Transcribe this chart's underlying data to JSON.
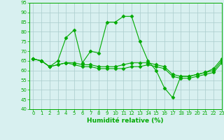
{
  "x": [
    0,
    1,
    2,
    3,
    4,
    5,
    6,
    7,
    8,
    9,
    10,
    11,
    12,
    13,
    14,
    15,
    16,
    17,
    18,
    19,
    20,
    21,
    22,
    23
  ],
  "line1": [
    66,
    65,
    62,
    65,
    77,
    81,
    64,
    70,
    69,
    85,
    85,
    88,
    88,
    75,
    65,
    60,
    51,
    46,
    57,
    57,
    58,
    59,
    61,
    66
  ],
  "line2": [
    66,
    65,
    62,
    63,
    64,
    64,
    63,
    63,
    62,
    62,
    62,
    63,
    64,
    64,
    64,
    63,
    62,
    58,
    57,
    57,
    58,
    59,
    60,
    65
  ],
  "line3": [
    66,
    65,
    62,
    63,
    64,
    63,
    62,
    62,
    61,
    61,
    61,
    61,
    62,
    62,
    63,
    62,
    61,
    57,
    56,
    56,
    57,
    58,
    59,
    64
  ],
  "bg_color": "#d8f0f0",
  "line_color": "#00aa00",
  "grid_color": "#aacccc",
  "xlabel": "Humidité relative (%)",
  "ylim": [
    40,
    95
  ],
  "xlim": [
    -0.5,
    23
  ],
  "yticks": [
    40,
    45,
    50,
    55,
    60,
    65,
    70,
    75,
    80,
    85,
    90,
    95
  ],
  "xticks": [
    0,
    1,
    2,
    3,
    4,
    5,
    6,
    7,
    8,
    9,
    10,
    11,
    12,
    13,
    14,
    15,
    16,
    17,
    18,
    19,
    20,
    21,
    22,
    23
  ]
}
